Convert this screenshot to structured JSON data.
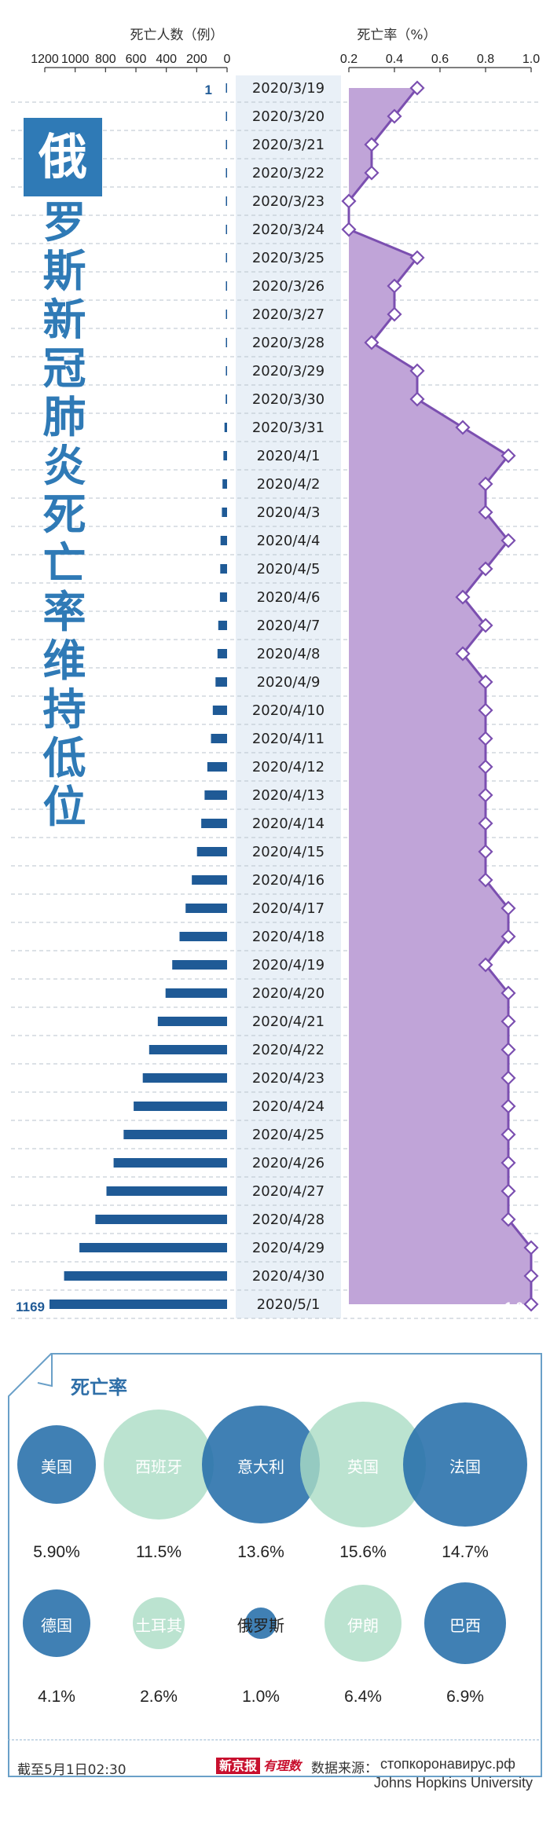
{
  "headline": [
    "俄",
    "罗",
    "斯",
    "新",
    "冠",
    "肺",
    "炎",
    "死",
    "亡",
    "率",
    "维",
    "持",
    "低",
    "位"
  ],
  "chart_data": {
    "type": "bar+area",
    "dates": [
      "2020/3/19",
      "2020/3/20",
      "2020/3/21",
      "2020/3/22",
      "2020/3/23",
      "2020/3/24",
      "2020/3/25",
      "2020/3/26",
      "2020/3/27",
      "2020/3/28",
      "2020/3/29",
      "2020/3/30",
      "2020/3/31",
      "2020/4/1",
      "2020/4/2",
      "2020/4/3",
      "2020/4/4",
      "2020/4/5",
      "2020/4/6",
      "2020/4/7",
      "2020/4/8",
      "2020/4/9",
      "2020/4/10",
      "2020/4/11",
      "2020/4/12",
      "2020/4/13",
      "2020/4/14",
      "2020/4/15",
      "2020/4/16",
      "2020/4/17",
      "2020/4/18",
      "2020/4/19",
      "2020/4/20",
      "2020/4/21",
      "2020/4/22",
      "2020/4/23",
      "2020/4/24",
      "2020/4/25",
      "2020/4/26",
      "2020/4/27",
      "2020/4/28",
      "2020/4/29",
      "2020/4/30",
      "2020/5/1"
    ],
    "deaths": [
      1,
      1,
      1,
      1,
      1,
      1,
      3,
      3,
      4,
      4,
      8,
      9,
      17,
      24,
      30,
      34,
      43,
      45,
      47,
      58,
      63,
      76,
      94,
      106,
      130,
      148,
      170,
      198,
      232,
      273,
      313,
      361,
      405,
      456,
      513,
      555,
      615,
      681,
      747,
      794,
      867,
      972,
      1073,
      1169
    ],
    "rate": [
      0.5,
      0.4,
      0.3,
      0.3,
      0.2,
      0.2,
      0.5,
      0.4,
      0.4,
      0.3,
      0.5,
      0.5,
      0.7,
      0.9,
      0.8,
      0.8,
      0.9,
      0.8,
      0.7,
      0.8,
      0.7,
      0.8,
      0.8,
      0.8,
      0.8,
      0.8,
      0.8,
      0.8,
      0.8,
      0.9,
      0.9,
      0.8,
      0.9,
      0.9,
      0.9,
      0.9,
      0.9,
      0.9,
      0.9,
      0.9,
      0.9,
      1.0,
      1.0,
      1.0
    ],
    "left_axis": {
      "title": "死亡人数（例）",
      "ticks": [
        "1200",
        "1000",
        "800",
        "600",
        "400",
        "200",
        "0"
      ],
      "range": [
        0,
        1200
      ],
      "reversed": true
    },
    "right_axis": {
      "title": "死亡率（%）",
      "ticks": [
        "0.2",
        "0.4",
        "0.6",
        "0.8",
        "1.0"
      ],
      "range": [
        0.2,
        1.0
      ]
    },
    "first_death_label": "1",
    "last_death_label": "1169",
    "last_rate_label": "1.0",
    "grid": "dashed-horizontal",
    "colors": {
      "bar": "#1f5a96",
      "area": "#c0a4d8",
      "line": "#7b4fb0",
      "date_band": "#e9f0f7"
    }
  },
  "panel": {
    "title": "死亡率",
    "countries": [
      {
        "name": "美国",
        "rate": "5.90%",
        "style": "blue"
      },
      {
        "name": "西班牙",
        "rate": "11.5%",
        "style": "green"
      },
      {
        "name": "意大利",
        "rate": "13.6%",
        "style": "blue"
      },
      {
        "name": "英国",
        "rate": "15.6%",
        "style": "green"
      },
      {
        "name": "法国",
        "rate": "14.7%",
        "style": "blue"
      },
      {
        "name": "德国",
        "rate": "4.1%",
        "style": "blue"
      },
      {
        "name": "土耳其",
        "rate": "2.6%",
        "style": "green"
      },
      {
        "name": "俄罗斯",
        "rate": "1.0%",
        "style": "blue"
      },
      {
        "name": "伊朗",
        "rate": "6.4%",
        "style": "green"
      },
      {
        "name": "巴西",
        "rate": "6.9%",
        "style": "blue"
      }
    ]
  },
  "footer": {
    "date": "截至5月1日02:30",
    "logo_brand": "新京报",
    "logo_script": "有理数",
    "source_label": "数据来源：",
    "source_1": "стопкоронавирус.рф",
    "source_2": "Johns Hopkins University"
  }
}
